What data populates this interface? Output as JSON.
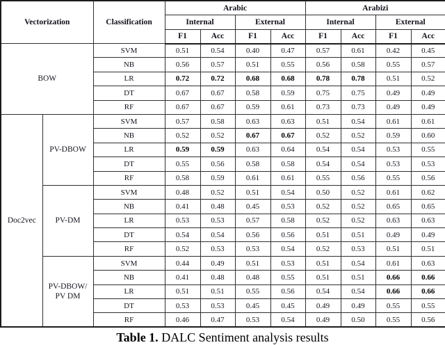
{
  "colors": {
    "border": "#2f2f2f",
    "outer_border": "#1c1c1c",
    "text": "#15151f"
  },
  "table": {
    "col_headers": {
      "vectorization": "Vectorization",
      "classification": "Classification",
      "langs": [
        {
          "label": "Arabic",
          "conditions": [
            {
              "label": "Internal",
              "metrics": [
                "F1",
                "Acc"
              ]
            },
            {
              "label": "External",
              "metrics": [
                "F1",
                "Acc"
              ]
            }
          ]
        },
        {
          "label": "Arabizi",
          "conditions": [
            {
              "label": "Internal",
              "metrics": [
                "F1",
                "Acc"
              ]
            },
            {
              "label": "External",
              "metrics": [
                "F1",
                "Acc"
              ]
            }
          ]
        }
      ]
    },
    "sections": [
      {
        "group": "BOW",
        "merge_group": true,
        "sub": "",
        "rows": [
          {
            "clf": "SVM",
            "values": [
              "0.51",
              "0.54",
              "0.40",
              "0.47",
              "0.57",
              "0.61",
              "0.42",
              "0.45"
            ],
            "bold": []
          },
          {
            "clf": "NB",
            "values": [
              "0.56",
              "0.57",
              "0.51",
              "0.55",
              "0.56",
              "0.58",
              "0.55",
              "0.57"
            ],
            "bold": []
          },
          {
            "clf": "LR",
            "values": [
              "0.72",
              "0.72",
              "0.68",
              "0.68",
              "0.78",
              "0.78",
              "0.51",
              "0.52"
            ],
            "bold": [
              0,
              1,
              2,
              3,
              4,
              5
            ]
          },
          {
            "clf": "DT",
            "values": [
              "0.67",
              "0.67",
              "0.58",
              "0.59",
              "0.75",
              "0.75",
              "0.49",
              "0.49"
            ],
            "bold": []
          },
          {
            "clf": "RF",
            "values": [
              "0.67",
              "0.67",
              "0.59",
              "0.61",
              "0.73",
              "0.73",
              "0.49",
              "0.49"
            ],
            "bold": []
          }
        ]
      },
      {
        "group": "Doc2vec",
        "merge_group": false,
        "sub": "PV-DBOW",
        "rows": [
          {
            "clf": "SVM",
            "values": [
              "0.57",
              "0.58",
              "0.63",
              "0.63",
              "0.51",
              "0.54",
              "0.61",
              "0.61"
            ],
            "bold": []
          },
          {
            "clf": "NB",
            "values": [
              "0.52",
              "0.52",
              "0.67",
              "0.67",
              "0.52",
              "0.52",
              "0.59",
              "0.60"
            ],
            "bold": [
              2,
              3
            ]
          },
          {
            "clf": "LR",
            "values": [
              "0.59",
              "0.59",
              "0.63",
              "0.64",
              "0.54",
              "0.54",
              "0.53",
              "0.55"
            ],
            "bold": [
              0,
              1
            ]
          },
          {
            "clf": "DT",
            "values": [
              "0.55",
              "0.56",
              "0.58",
              "0.58",
              "0.54",
              "0.54",
              "0.53",
              "0.53"
            ],
            "bold": []
          },
          {
            "clf": "RF",
            "values": [
              "0.58",
              "0.59",
              "0.61",
              "0.61",
              "0.55",
              "0.56",
              "0.55",
              "0.56"
            ],
            "bold": []
          }
        ]
      },
      {
        "group": "",
        "merge_group": false,
        "sub": "PV-DM",
        "rows": [
          {
            "clf": "SVM",
            "values": [
              "0.48",
              "0.52",
              "0.51",
              "0.54",
              "0.50",
              "0.52",
              "0.61",
              "0.62"
            ],
            "bold": []
          },
          {
            "clf": "NB",
            "values": [
              "0.41",
              "0.48",
              "0.45",
              "0.53",
              "0.52",
              "0.52",
              "0.65",
              "0.65"
            ],
            "bold": []
          },
          {
            "clf": "LR",
            "values": [
              "0.53",
              "0.53",
              "0.57",
              "0.58",
              "0.52",
              "0.52",
              "0.63",
              "0.63"
            ],
            "bold": []
          },
          {
            "clf": "DT",
            "values": [
              "0.54",
              "0.54",
              "0.56",
              "0.56",
              "0.51",
              "0.51",
              "0.49",
              "0.49"
            ],
            "bold": []
          },
          {
            "clf": "RF",
            "values": [
              "0.52",
              "0.53",
              "0.53",
              "0.54",
              "0.52",
              "0.53",
              "0.51",
              "0.51"
            ],
            "bold": []
          }
        ]
      },
      {
        "group": "",
        "merge_group": false,
        "sub": "PV-DBOW/\nPV DM",
        "rows": [
          {
            "clf": "SVM",
            "values": [
              "0.44",
              "0.49",
              "0.51",
              "0.53",
              "0.51",
              "0.54",
              "0.61",
              "0.63"
            ],
            "bold": []
          },
          {
            "clf": "NB",
            "values": [
              "0.41",
              "0.48",
              "0.48",
              "0.55",
              "0.51",
              "0.51",
              "0.66",
              "0.66"
            ],
            "bold": [
              6,
              7
            ]
          },
          {
            "clf": "LR",
            "values": [
              "0.51",
              "0.51",
              "0.55",
              "0.56",
              "0.54",
              "0.54",
              "0.66",
              "0.66"
            ],
            "bold": [
              6,
              7
            ]
          },
          {
            "clf": "DT",
            "values": [
              "0.53",
              "0.53",
              "0.45",
              "0.45",
              "0.49",
              "0.49",
              "0.55",
              "0.55"
            ],
            "bold": []
          },
          {
            "clf": "RF",
            "values": [
              "0.46",
              "0.47",
              "0.53",
              "0.54",
              "0.49",
              "0.50",
              "0.55",
              "0.56"
            ],
            "bold": []
          }
        ]
      }
    ]
  },
  "caption": {
    "label": "Table 1.",
    "text": "DALC Sentiment analysis results"
  }
}
